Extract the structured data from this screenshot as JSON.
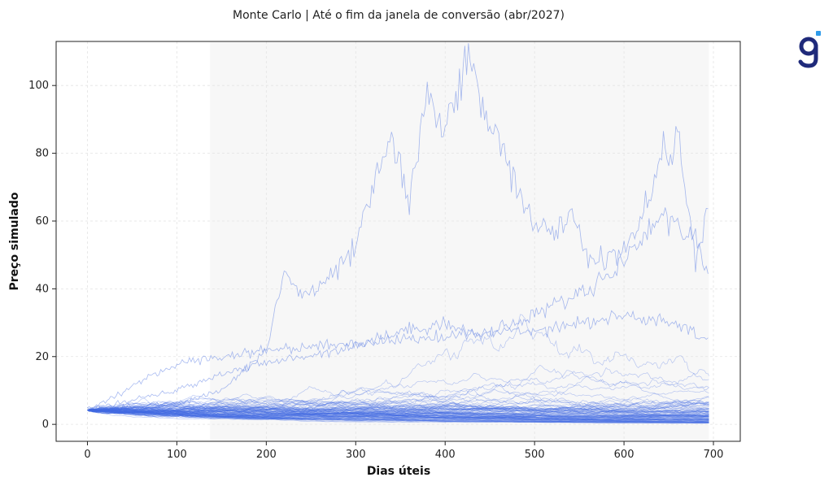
{
  "brand": {
    "logo_text": "g",
    "logo_color": "#1f2a7a",
    "logo_accent": "#2f9bea"
  },
  "chart_data": {
    "type": "line",
    "title": "Monte Carlo | Até o fim da janela de conversão (abr/2027)",
    "xlabel": "Dias úteis",
    "ylabel": "Preço simulado",
    "xlim": [
      -35,
      730
    ],
    "ylim": [
      -5,
      113
    ],
    "x_ticks": [
      0,
      100,
      200,
      300,
      400,
      500,
      600,
      700
    ],
    "y_ticks": [
      0,
      20,
      40,
      60,
      80,
      100
    ],
    "grid": true,
    "shaded_region": {
      "x_start": 137,
      "x_end": 695,
      "color": "#f7f7f7"
    },
    "line_color": "#4169e1",
    "n_paths": 100,
    "n_steps": 695,
    "start_value": 4.2,
    "series": [
      {
        "x": [
          0,
          100,
          150,
          200,
          220,
          240,
          260,
          300,
          320,
          340,
          360,
          380,
          400,
          420,
          427,
          440,
          460,
          480,
          500,
          520,
          540,
          560,
          580,
          600,
          620,
          640,
          660,
          680,
          695
        ],
        "values": [
          4.2,
          6,
          10,
          22,
          45,
          38,
          40,
          52,
          70,
          85,
          65,
          95,
          90,
          103,
          108,
          93,
          86,
          70,
          60,
          55,
          62,
          50,
          48,
          52,
          60,
          78,
          85,
          48,
          62
        ]
      },
      {
        "x": [
          0,
          100,
          150,
          200,
          240,
          280,
          320,
          360,
          400,
          440,
          480,
          520,
          560,
          600,
          640,
          680,
          695
        ],
        "values": [
          4.2,
          10,
          15,
          18,
          20,
          22,
          25,
          28,
          30,
          26,
          30,
          35,
          40,
          48,
          62,
          55,
          45
        ]
      },
      {
        "x": [
          0,
          100,
          200,
          300,
          400,
          500,
          600,
          650,
          695
        ],
        "values": [
          4.2,
          18,
          22,
          24,
          26,
          28,
          32,
          30,
          25
        ]
      }
    ]
  }
}
